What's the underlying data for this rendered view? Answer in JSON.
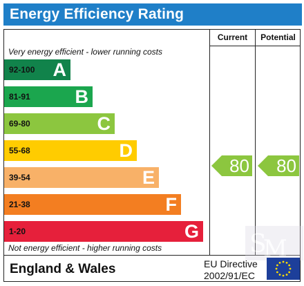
{
  "title": "Energy Efficiency Rating",
  "columns": {
    "current": "Current",
    "potential": "Potential"
  },
  "top_note": "Very energy efficient - lower running costs",
  "bottom_note": "Not energy efficient - higher running costs",
  "footer": {
    "region": "England & Wales",
    "directive_line1": "EU Directive",
    "directive_line2": "2002/91/EC"
  },
  "colors": {
    "title_bar": "#1f7fc8",
    "arrow": "#8cc63f"
  },
  "icons": {
    "flag": "eu-flag-icon",
    "watermark": "sm-watermark-icon"
  },
  "chart_data": {
    "type": "bar",
    "categories": [
      "A",
      "B",
      "C",
      "D",
      "E",
      "F",
      "G"
    ],
    "bands": [
      {
        "letter": "A",
        "range": "92-100",
        "color": "#11834b"
      },
      {
        "letter": "B",
        "range": "81-91",
        "color": "#1ba64e"
      },
      {
        "letter": "C",
        "range": "69-80",
        "color": "#8cc63f"
      },
      {
        "letter": "D",
        "range": "55-68",
        "color": "#ffcc00"
      },
      {
        "letter": "E",
        "range": "39-54",
        "color": "#f8b168"
      },
      {
        "letter": "F",
        "range": "21-38",
        "color": "#f37e21"
      },
      {
        "letter": "G",
        "range": "1-20",
        "color": "#e6203b"
      }
    ],
    "current": {
      "value": "80",
      "band": "C"
    },
    "potential": {
      "value": "80",
      "band": "C"
    }
  }
}
